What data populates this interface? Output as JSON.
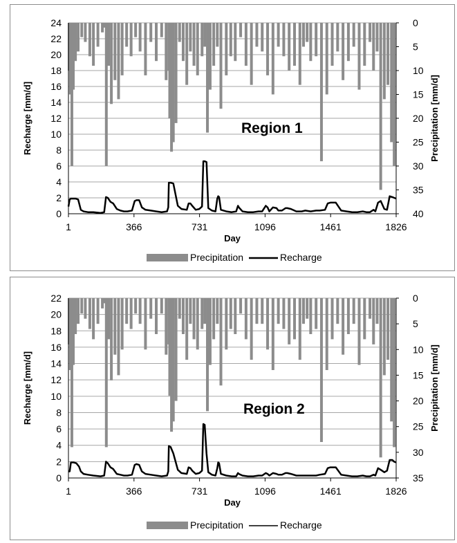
{
  "colors": {
    "precipitation": "#8c8c8c",
    "recharge": "#000000",
    "grid": "#a6a6a6"
  },
  "chart_data": [
    {
      "type": "bar+line",
      "title": "Region 1",
      "xlabel": "Day",
      "ylabel": "Recharge [mm/d]",
      "y2label": "Precipitation [mm/d]",
      "xlim": [
        1,
        1826
      ],
      "xticks": [
        1,
        366,
        731,
        1096,
        1461,
        1826
      ],
      "ylim": [
        0,
        24
      ],
      "yticks": [
        0,
        2,
        4,
        6,
        8,
        10,
        12,
        14,
        16,
        18,
        20,
        22,
        24
      ],
      "y2lim": [
        0,
        40
      ],
      "y2ticks": [
        0,
        5,
        10,
        15,
        20,
        25,
        30,
        35,
        40
      ],
      "y2_inverted": true,
      "grid": true,
      "legend_position": "bottom",
      "series": [
        {
          "name": "Precipitation",
          "kind": "bar",
          "axis": "y2",
          "x": [
            5,
            12,
            20,
            28,
            40,
            55,
            75,
            95,
            120,
            140,
            165,
            190,
            205,
            212,
            225,
            240,
            260,
            280,
            300,
            325,
            350,
            375,
            400,
            430,
            460,
            490,
            520,
            545,
            560,
            565,
            575,
            585,
            600,
            620,
            640,
            660,
            680,
            700,
            720,
            745,
            760,
            775,
            790,
            810,
            830,
            850,
            880,
            905,
            930,
            960,
            990,
            1020,
            1050,
            1080,
            1110,
            1140,
            1170,
            1200,
            1230,
            1260,
            1290,
            1310,
            1330,
            1350,
            1380,
            1410,
            1440,
            1470,
            1500,
            1530,
            1560,
            1590,
            1620,
            1650,
            1680,
            1700,
            1720,
            1740,
            1760,
            1780,
            1800,
            1815
          ],
          "y": [
            10,
            15,
            30,
            14,
            8,
            6,
            3,
            4,
            7,
            9,
            5,
            2,
            1,
            30,
            9,
            17,
            12,
            16,
            11,
            5,
            7,
            3,
            6,
            11,
            4,
            8,
            3,
            12,
            10,
            20,
            27,
            25,
            21,
            4,
            8,
            13,
            6,
            9,
            11,
            7,
            5,
            23,
            14,
            9,
            5,
            18,
            11,
            7,
            8,
            3,
            9,
            13,
            5,
            6,
            11,
            15,
            5,
            7,
            10,
            9,
            13,
            5,
            4,
            8,
            7,
            29,
            15,
            9,
            6,
            12,
            8,
            5,
            14,
            9,
            4,
            10,
            6,
            35,
            16,
            13,
            25,
            30
          ]
        },
        {
          "name": "Recharge",
          "kind": "line",
          "axis": "y",
          "x": [
            1,
            8,
            15,
            40,
            55,
            70,
            85,
            110,
            140,
            180,
            200,
            210,
            220,
            235,
            250,
            270,
            290,
            310,
            330,
            355,
            370,
            380,
            395,
            410,
            430,
            460,
            490,
            520,
            550,
            557,
            560,
            570,
            585,
            610,
            630,
            660,
            670,
            680,
            690,
            710,
            730,
            745,
            752,
            760,
            770,
            780,
            800,
            820,
            830,
            835,
            840,
            850,
            880,
            910,
            935,
            945,
            950,
            970,
            1000,
            1030,
            1060,
            1080,
            1100,
            1110,
            1120,
            1140,
            1160,
            1170,
            1190,
            1210,
            1220,
            1240,
            1270,
            1300,
            1320,
            1350,
            1380,
            1400,
            1430,
            1445,
            1460,
            1490,
            1520,
            1550,
            1580,
            1610,
            1640,
            1660,
            1680,
            1700,
            1710,
            1725,
            1740,
            1760,
            1775,
            1790,
            1805,
            1815,
            1826
          ],
          "y": [
            0.9,
            1.8,
            1.9,
            1.9,
            1.8,
            0.5,
            0.3,
            0.2,
            0.2,
            0.1,
            0.2,
            2.1,
            2.0,
            1.5,
            1.3,
            0.6,
            0.4,
            0.3,
            0.3,
            0.4,
            1.6,
            1.7,
            1.7,
            0.8,
            0.5,
            0.4,
            0.3,
            0.2,
            0.3,
            0.8,
            3.9,
            3.9,
            3.8,
            1.0,
            0.6,
            0.5,
            1.3,
            1.3,
            1.0,
            0.5,
            0.6,
            0.9,
            6.6,
            6.6,
            6.5,
            0.7,
            0.4,
            0.3,
            1.9,
            2.2,
            2.1,
            0.5,
            0.3,
            0.2,
            0.3,
            1.0,
            0.8,
            0.3,
            0.2,
            0.2,
            0.3,
            0.3,
            1.0,
            0.8,
            0.3,
            0.8,
            0.7,
            0.4,
            0.4,
            0.7,
            0.7,
            0.6,
            0.3,
            0.3,
            0.4,
            0.3,
            0.4,
            0.4,
            0.5,
            1.3,
            1.4,
            1.4,
            0.4,
            0.3,
            0.2,
            0.2,
            0.3,
            0.2,
            0.2,
            0.5,
            0.3,
            1.4,
            1.6,
            0.6,
            0.5,
            2.2,
            2.1,
            2.0,
            1.9
          ]
        }
      ]
    },
    {
      "type": "bar+line",
      "title": "Region 2",
      "xlabel": "Day",
      "ylabel": "Recharge [mm/d]",
      "y2label": "Precipitation [mm/d]",
      "xlim": [
        1,
        1826
      ],
      "xticks": [
        1,
        366,
        731,
        1096,
        1461,
        1826
      ],
      "ylim": [
        0,
        22
      ],
      "yticks": [
        0,
        2,
        4,
        6,
        8,
        10,
        12,
        14,
        16,
        18,
        20,
        22
      ],
      "y2lim": [
        0,
        35
      ],
      "y2ticks": [
        0,
        5,
        10,
        15,
        20,
        25,
        30,
        35
      ],
      "y2_inverted": true,
      "grid": true,
      "legend_position": "bottom",
      "series": [
        {
          "name": "Precipitation",
          "kind": "bar",
          "axis": "y2",
          "x": [
            5,
            12,
            20,
            28,
            40,
            55,
            75,
            95,
            120,
            140,
            165,
            190,
            205,
            212,
            225,
            240,
            260,
            280,
            300,
            325,
            350,
            375,
            400,
            430,
            460,
            490,
            520,
            545,
            560,
            565,
            575,
            585,
            600,
            620,
            640,
            660,
            680,
            700,
            720,
            745,
            760,
            775,
            790,
            810,
            830,
            850,
            880,
            905,
            930,
            960,
            990,
            1020,
            1050,
            1080,
            1110,
            1140,
            1170,
            1200,
            1230,
            1260,
            1290,
            1310,
            1330,
            1350,
            1380,
            1410,
            1440,
            1470,
            1500,
            1530,
            1560,
            1590,
            1620,
            1650,
            1680,
            1700,
            1720,
            1740,
            1760,
            1780,
            1800,
            1815
          ],
          "y": [
            9,
            14,
            29,
            13,
            7,
            5,
            3,
            4,
            6,
            8,
            5,
            2,
            1,
            29,
            8,
            16,
            11,
            15,
            10,
            5,
            6,
            3,
            5,
            10,
            4,
            7,
            3,
            11,
            9,
            19,
            26,
            24,
            20,
            4,
            7,
            12,
            5,
            8,
            10,
            6,
            5,
            22,
            13,
            8,
            5,
            17,
            10,
            6,
            7,
            3,
            8,
            12,
            5,
            5,
            10,
            14,
            5,
            6,
            9,
            8,
            12,
            5,
            4,
            7,
            6,
            28,
            14,
            8,
            5,
            11,
            7,
            5,
            13,
            8,
            4,
            9,
            5,
            31,
            15,
            12,
            24,
            29
          ]
        },
        {
          "name": "Recharge",
          "kind": "line",
          "axis": "y",
          "x": [
            1,
            8,
            15,
            30,
            45,
            60,
            70,
            85,
            110,
            140,
            180,
            200,
            210,
            220,
            235,
            250,
            270,
            290,
            310,
            330,
            355,
            370,
            380,
            395,
            410,
            430,
            460,
            490,
            520,
            550,
            557,
            560,
            570,
            585,
            610,
            630,
            660,
            670,
            680,
            690,
            710,
            730,
            745,
            752,
            760,
            770,
            780,
            800,
            820,
            830,
            835,
            840,
            850,
            880,
            910,
            935,
            945,
            950,
            970,
            1000,
            1030,
            1060,
            1080,
            1100,
            1110,
            1120,
            1140,
            1160,
            1170,
            1190,
            1210,
            1220,
            1240,
            1270,
            1300,
            1320,
            1350,
            1380,
            1400,
            1430,
            1445,
            1460,
            1490,
            1520,
            1550,
            1580,
            1610,
            1640,
            1660,
            1680,
            1700,
            1710,
            1725,
            1740,
            1760,
            1775,
            1790,
            1805,
            1815,
            1826
          ],
          "y": [
            0.8,
            0.8,
            1.9,
            1.9,
            1.8,
            1.4,
            0.8,
            0.5,
            0.4,
            0.3,
            0.2,
            0.3,
            2.0,
            1.8,
            1.3,
            1.1,
            0.5,
            0.4,
            0.3,
            0.3,
            0.4,
            1.6,
            1.7,
            1.6,
            0.8,
            0.5,
            0.4,
            0.3,
            0.2,
            0.3,
            0.8,
            3.9,
            3.8,
            3.0,
            1.0,
            0.6,
            0.5,
            1.3,
            1.2,
            0.9,
            0.5,
            0.6,
            0.9,
            6.6,
            6.5,
            3.0,
            0.7,
            0.4,
            0.3,
            1.2,
            1.9,
            1.8,
            0.5,
            0.3,
            0.2,
            0.2,
            0.6,
            0.5,
            0.3,
            0.2,
            0.2,
            0.3,
            0.3,
            0.6,
            0.5,
            0.3,
            0.6,
            0.5,
            0.4,
            0.4,
            0.6,
            0.6,
            0.5,
            0.3,
            0.3,
            0.3,
            0.3,
            0.3,
            0.4,
            0.5,
            1.2,
            1.3,
            1.3,
            0.4,
            0.3,
            0.2,
            0.2,
            0.3,
            0.2,
            0.2,
            0.4,
            0.3,
            1.2,
            1.0,
            0.7,
            0.9,
            2.2,
            2.2,
            2.0,
            1.9
          ]
        }
      ]
    }
  ]
}
